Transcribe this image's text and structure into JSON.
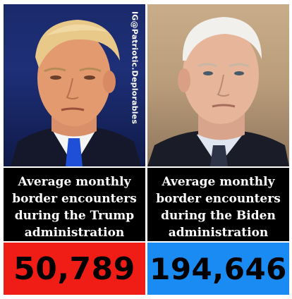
{
  "watermark": "IG@Patriotic.Deplorables",
  "left_panel": {
    "photo_icon": "portrait-photo",
    "caption_lines": [
      "Average monthly",
      "border encounters",
      "during the Trump",
      "administration"
    ],
    "value": "50,789",
    "value_color": "#ef1d16"
  },
  "right_panel": {
    "photo_icon": "portrait-photo",
    "caption_lines": [
      "Average monthly",
      "border encounters",
      "during the Biden",
      "administration"
    ],
    "value": "194,646",
    "value_color": "#1a8bf2"
  }
}
